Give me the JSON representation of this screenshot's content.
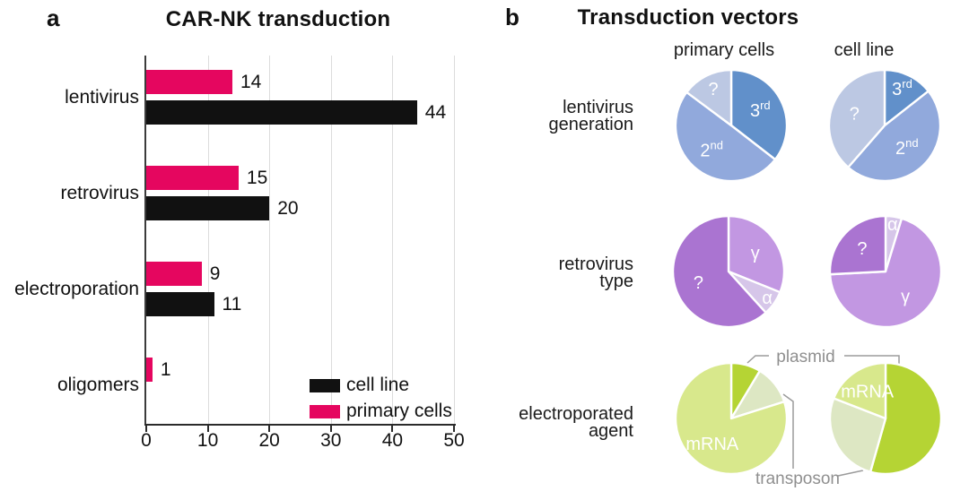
{
  "panels": {
    "a": {
      "panel_label": "a"
    },
    "b": {
      "panel_label": "b",
      "title": "Transduction vectors",
      "column_headers": [
        "primary cells",
        "cell line"
      ],
      "row_labels": [
        [
          "lentivirus",
          "generation"
        ],
        [
          "retrovirus",
          "type"
        ],
        [
          "electroporated",
          "agent"
        ]
      ],
      "callouts": {
        "plasmid": "plasmid",
        "transposon": "transposon"
      }
    }
  },
  "chart_data": [
    {
      "type": "bar",
      "panel": "a",
      "title": "CAR-NK transduction",
      "orientation": "horizontal",
      "categories": [
        "lentivirus",
        "retrovirus",
        "electroporation",
        "oligomers"
      ],
      "series": [
        {
          "name": "primary cells",
          "color": "#e5065f",
          "values": [
            14,
            15,
            9,
            1
          ]
        },
        {
          "name": "cell line",
          "color": "#111111",
          "values": [
            44,
            20,
            11,
            0
          ]
        }
      ],
      "xlim": [
        0,
        50
      ],
      "x_ticks": [
        0,
        10,
        20,
        30,
        40,
        50
      ],
      "grid": true,
      "value_labels": true,
      "legend_position": "bottom-right",
      "legend": [
        {
          "label": "cell line",
          "color": "#111111"
        },
        {
          "label": "primary cells",
          "color": "#e5065f"
        }
      ]
    },
    {
      "type": "pie",
      "panel": "b",
      "group": "lentivirus generation",
      "cohort": "primary cells",
      "slices": [
        {
          "label": "3rd",
          "pct": 35.5,
          "color": "#6190ca",
          "label_inside": true
        },
        {
          "label": "2nd",
          "pct": 49.7,
          "color": "#91a9dc",
          "label_inside": true
        },
        {
          "label": "?",
          "pct": 14.8,
          "color": "#bcc8e3",
          "label_inside": true
        }
      ]
    },
    {
      "type": "pie",
      "panel": "b",
      "group": "lentivirus generation",
      "cohort": "cell line",
      "slices": [
        {
          "label": "3rd",
          "pct": 14.4,
          "color": "#6190ca",
          "label_inside": true
        },
        {
          "label": "2nd",
          "pct": 47.0,
          "color": "#91a9dc",
          "label_inside": true
        },
        {
          "label": "?",
          "pct": 38.6,
          "color": "#bcc8e3",
          "label_inside": true
        }
      ]
    },
    {
      "type": "pie",
      "panel": "b",
      "group": "retrovirus type",
      "cohort": "primary cells",
      "slices": [
        {
          "label": "γ",
          "pct": 31.1,
          "color": "#c297e2",
          "label_inside": true
        },
        {
          "label": "α",
          "pct": 7.2,
          "color": "#d6c6e9",
          "label_inside": true
        },
        {
          "label": "?",
          "pct": 61.7,
          "color": "#aa74d1",
          "label_inside": true
        }
      ]
    },
    {
      "type": "pie",
      "panel": "b",
      "group": "retrovirus type",
      "cohort": "cell line",
      "slices": [
        {
          "label": "α",
          "pct": 4.7,
          "color": "#d6c6e9",
          "label_inside": true
        },
        {
          "label": "γ",
          "pct": 69.5,
          "color": "#c297e2",
          "label_inside": true
        },
        {
          "label": "?",
          "pct": 25.8,
          "color": "#aa74d1",
          "label_inside": true
        }
      ]
    },
    {
      "type": "pie",
      "panel": "b",
      "group": "electroporated agent",
      "cohort": "primary cells",
      "slices": [
        {
          "label": "plasmid",
          "pct": 8.6,
          "color": "#b5d434",
          "label_inside": false
        },
        {
          "label": "transposon",
          "pct": 11.5,
          "color": "#dde7c3",
          "label_inside": false
        },
        {
          "label": "mRNA",
          "pct": 79.9,
          "color": "#d8e88c",
          "label_inside": true
        }
      ]
    },
    {
      "type": "pie",
      "panel": "b",
      "group": "electroporated agent",
      "cohort": "cell line",
      "slices": [
        {
          "label": "plasmid",
          "pct": 54.4,
          "color": "#b5d434",
          "label_inside": false
        },
        {
          "label": "transposon",
          "pct": 26.5,
          "color": "#dde7c3",
          "label_inside": false
        },
        {
          "label": "mRNA",
          "pct": 19.1,
          "color": "#d8e88c",
          "label_inside": true
        }
      ]
    }
  ]
}
